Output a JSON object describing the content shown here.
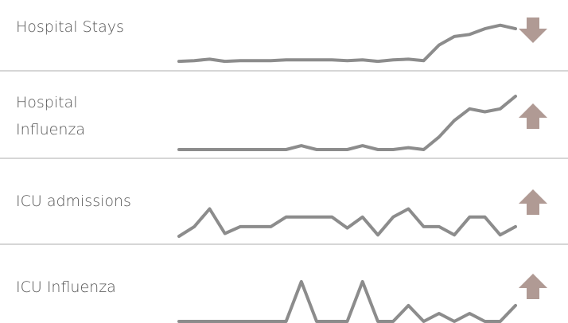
{
  "chart_data": [
    {
      "type": "line",
      "title": "Hospital Stays",
      "values": [
        1,
        2,
        4,
        1,
        2,
        2,
        2,
        3,
        3,
        3,
        3,
        2,
        3,
        1,
        3,
        4,
        2,
        24,
        36,
        39,
        47,
        52,
        47
      ],
      "trend": "down",
      "ylim": [
        0,
        55
      ]
    },
    {
      "type": "line",
      "title": "Hospital Influenza",
      "values": [
        0,
        0,
        0,
        0,
        0,
        0,
        0,
        0,
        4,
        0,
        0,
        0,
        4,
        0,
        0,
        2,
        0,
        13,
        30,
        42,
        39,
        42,
        55
      ],
      "trend": "up",
      "ylim": [
        0,
        55
      ]
    },
    {
      "type": "line",
      "title": "ICU admissions",
      "values": [
        0,
        7,
        20,
        2,
        7,
        7,
        7,
        14,
        14,
        14,
        14,
        6,
        14,
        1,
        14,
        20,
        7,
        7,
        1,
        14,
        14,
        1,
        7
      ],
      "trend": "up",
      "ylim": [
        0,
        22
      ]
    },
    {
      "type": "line",
      "title": "ICU Influenza",
      "values": [
        0,
        0,
        0,
        0,
        0,
        0,
        0,
        0,
        5,
        0,
        0,
        0,
        5,
        0,
        0,
        2,
        0,
        1,
        0,
        1,
        0,
        0,
        2
      ],
      "trend": "up",
      "ylim": [
        0,
        5
      ]
    }
  ],
  "colors": {
    "line": "#8c8c8c",
    "arrow": "#b09a94",
    "label": "#555555",
    "divider": "#d6d6d6"
  }
}
